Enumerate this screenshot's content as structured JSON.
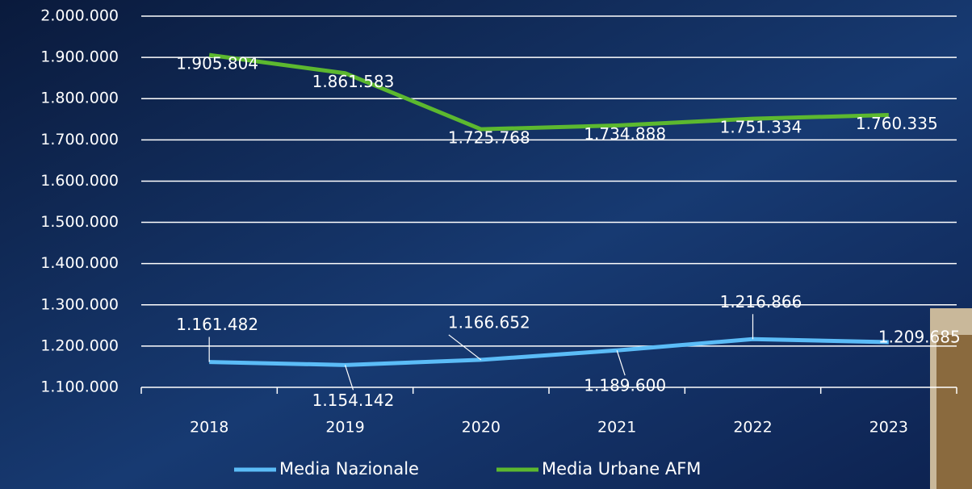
{
  "chart_data": {
    "type": "line",
    "categories": [
      "2018",
      "2019",
      "2020",
      "2021",
      "2022",
      "2023"
    ],
    "series": [
      {
        "name": "Media Nazionale",
        "color": "#5bbcf7",
        "values": [
          1161482,
          1154142,
          1166652,
          1189600,
          1216866,
          1209685
        ],
        "value_labels": [
          "1.161.482",
          "1.154.142",
          "1.166.652",
          "1.189.600",
          "1.216.866",
          "1.209.685"
        ]
      },
      {
        "name": "Media Urbane AFM",
        "color": "#5cb82f",
        "values": [
          1905804,
          1861583,
          1725768,
          1734888,
          1751334,
          1760335
        ],
        "value_labels": [
          "1.905.804",
          "1.861.583",
          "1.725.768",
          "1.734.888",
          "1.751.334",
          "1.760.335"
        ]
      }
    ],
    "ylim": [
      1100000,
      2000000
    ],
    "yticks": [
      {
        "value": 1100000,
        "label": "1.100.000"
      },
      {
        "value": 1200000,
        "label": "1.200.000"
      },
      {
        "value": 1300000,
        "label": "1.300.000"
      },
      {
        "value": 1400000,
        "label": "1.400.000"
      },
      {
        "value": 1500000,
        "label": "1.500.000"
      },
      {
        "value": 1600000,
        "label": "1.600.000"
      },
      {
        "value": 1700000,
        "label": "1.700.000"
      },
      {
        "value": 1800000,
        "label": "1.800.000"
      },
      {
        "value": 1900000,
        "label": "1.900.000"
      },
      {
        "value": 2000000,
        "label": "2.000.000"
      }
    ],
    "grid": true,
    "legend": "bottom"
  }
}
